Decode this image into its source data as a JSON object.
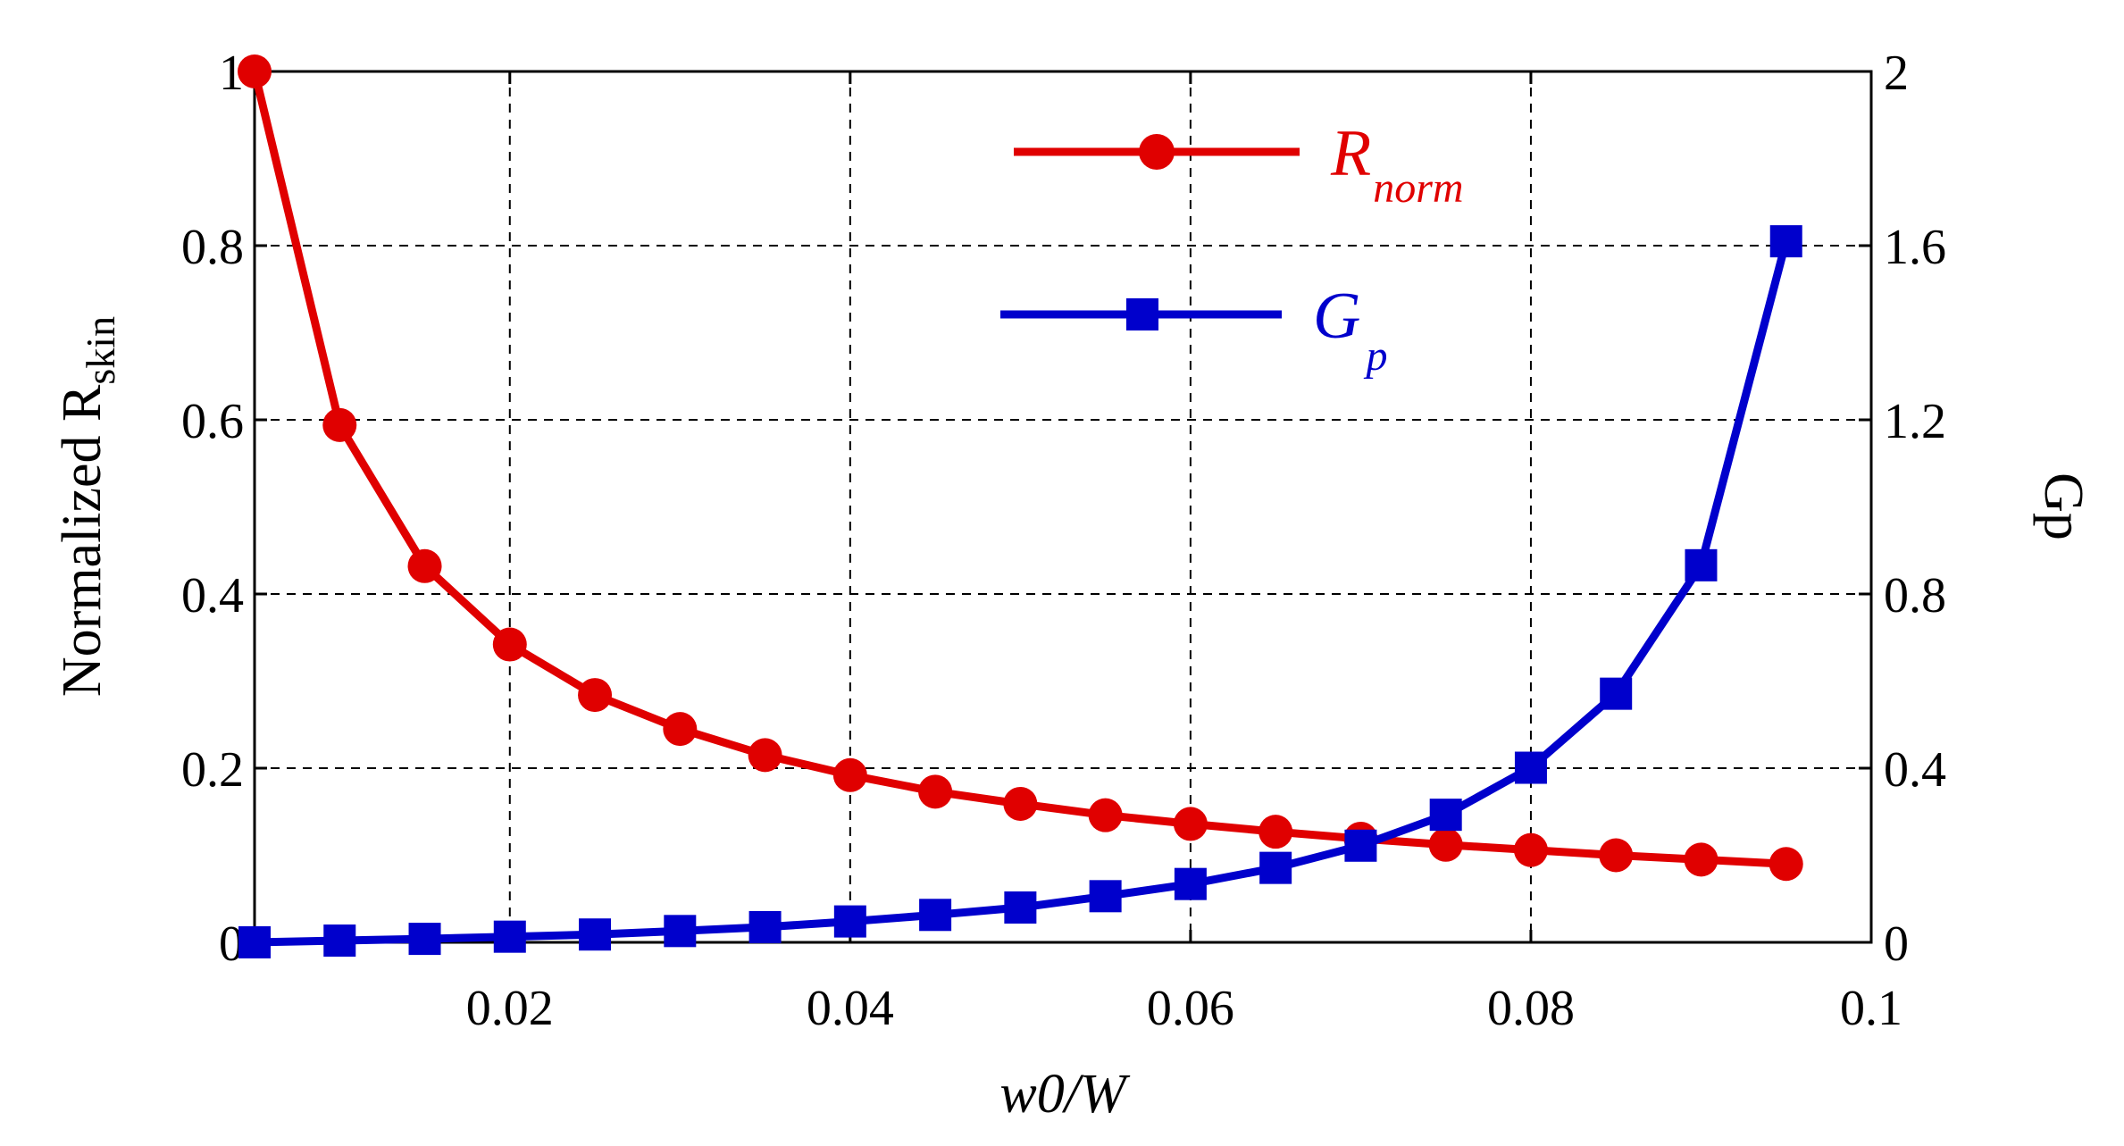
{
  "chart_data": {
    "type": "line",
    "title": "",
    "xlabel": "w0/W",
    "ylabel_left": "Normalized R",
    "ylabel_left_subscript": "skin",
    "ylabel_right": "Gp",
    "xlim": [
      0.005,
      0.1
    ],
    "ylim_left": [
      0,
      1
    ],
    "ylim_right": [
      0,
      2
    ],
    "grid": true,
    "x_ticks": [
      0.02,
      0.04,
      0.06,
      0.08,
      0.1
    ],
    "x_tick_labels": [
      "0.02",
      "0.04",
      "0.06",
      "0.08",
      "0.1"
    ],
    "y_left_ticks": [
      0,
      0.2,
      0.4,
      0.6,
      0.8,
      1
    ],
    "y_left_tick_labels": [
      "0",
      "0.2",
      "0.4",
      "0.6",
      "0.8",
      "1"
    ],
    "y_right_ticks": [
      0,
      0.4,
      0.8,
      1.2,
      1.6,
      2
    ],
    "y_right_tick_labels": [
      "0",
      "0.4",
      "0.8",
      "1.2",
      "1.6",
      "2"
    ],
    "x": [
      0.005,
      0.01,
      0.015,
      0.02,
      0.025,
      0.03,
      0.035,
      0.04,
      0.045,
      0.05,
      0.055,
      0.06,
      0.065,
      0.07,
      0.075,
      0.08,
      0.085,
      0.09,
      0.095
    ],
    "series": [
      {
        "name": "R",
        "name_subscript": "norm",
        "axis": "left",
        "color": "#e00000",
        "marker": "circle",
        "values": [
          1.0,
          0.594,
          0.432,
          0.342,
          0.284,
          0.245,
          0.215,
          0.192,
          0.173,
          0.159,
          0.146,
          0.136,
          0.127,
          0.119,
          0.112,
          0.106,
          0.1,
          0.095,
          0.09
        ]
      },
      {
        "name": "G",
        "name_subscript": "p",
        "axis": "right",
        "color": "#0000cc",
        "marker": "square",
        "values": [
          0.0,
          0.004,
          0.008,
          0.013,
          0.018,
          0.026,
          0.035,
          0.048,
          0.063,
          0.08,
          0.106,
          0.134,
          0.171,
          0.222,
          0.293,
          0.401,
          0.571,
          0.866,
          1.61
        ]
      }
    ],
    "legend_position": "top-center"
  }
}
